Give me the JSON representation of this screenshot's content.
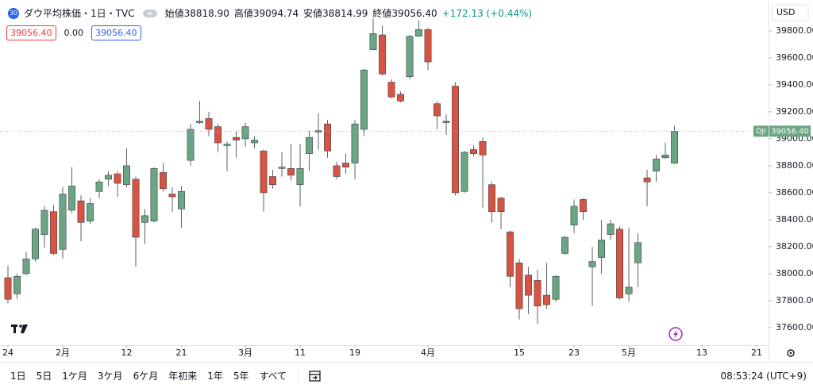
{
  "header": {
    "badge": "30",
    "title": "ダウ平均株価・1日・TVC",
    "ohlc": [
      {
        "label": "始値",
        "value": "38818.90"
      },
      {
        "label": "高値",
        "value": "39094.74"
      },
      {
        "label": "安値",
        "value": "38814.99"
      },
      {
        "label": "終値",
        "value": "39056.40"
      }
    ],
    "change": "+172.13 (+0.44%)",
    "sell": "39056.40",
    "spread": "0.00",
    "buy": "39056.40"
  },
  "chart_data": {
    "type": "candlestick",
    "symbol": "DJI",
    "last_price_label": "39056.40",
    "currency": "USD",
    "up_color": "#6ba583",
    "down_color": "#d75442",
    "grid": false,
    "open": [
      37970,
      37850,
      38000,
      38110,
      38290,
      38460,
      38180,
      38470,
      38540,
      38390,
      38610,
      38700,
      38740,
      38660,
      38700,
      38380,
      38390,
      38750,
      38590,
      38480,
      38840,
      39120,
      39150,
      39090,
      38950,
      39010,
      39000,
      38970,
      38910,
      38720,
      38780,
      38780,
      38660,
      38890,
      39060,
      39110,
      38800,
      38820,
      38820,
      39070,
      39660,
      39770,
      39420,
      39330,
      39460,
      39760,
      39810,
      39260,
      39130,
      39390,
      38610,
      38920,
      38980,
      38660,
      38560,
      38310,
      38080,
      37990,
      37950,
      37840,
      37810,
      38150,
      38360,
      38550,
      38050,
      38120,
      38290,
      38330,
      37850,
      38080,
      38710,
      38760,
      38860,
      38818.9
    ],
    "high": [
      38060,
      38000,
      38160,
      38340,
      38500,
      38510,
      38640,
      38790,
      38580,
      38560,
      38700,
      38760,
      38760,
      38930,
      38720,
      38480,
      38790,
      38820,
      38640,
      38650,
      39110,
      39280,
      39200,
      39110,
      38980,
      39060,
      39120,
      39020,
      38920,
      38770,
      38900,
      38960,
      38960,
      39060,
      39190,
      39140,
      38830,
      38890,
      39140,
      39520,
      39890,
      39840,
      39440,
      39350,
      39770,
      39880,
      39820,
      39280,
      39180,
      39420,
      38910,
      38950,
      39010,
      38680,
      38570,
      38320,
      38110,
      38050,
      38030,
      38080,
      37990,
      38280,
      38550,
      38560,
      38200,
      38400,
      38400,
      38350,
      38340,
      38300,
      38770,
      38880,
      38970,
      39094.74
    ],
    "low": [
      37780,
      37810,
      37990,
      38090,
      38190,
      38140,
      38110,
      38450,
      38240,
      38370,
      38560,
      38650,
      38570,
      38640,
      38050,
      38220,
      38380,
      38610,
      38460,
      38340,
      38800,
      39110,
      39020,
      38900,
      38760,
      38860,
      38940,
      38930,
      38460,
      38630,
      38720,
      38690,
      38500,
      38760,
      38920,
      38860,
      38700,
      38740,
      38700,
      39020,
      39660,
      39470,
      39300,
      39270,
      39440,
      39760,
      39510,
      39070,
      39030,
      38580,
      38600,
      38870,
      38490,
      38380,
      38330,
      37900,
      37660,
      37700,
      37630,
      37740,
      37790,
      38140,
      38300,
      38400,
      37760,
      38000,
      38250,
      37810,
      37790,
      37900,
      38500,
      38680,
      38850,
      38814.99
    ],
    "close": [
      37810,
      37980,
      38110,
      38330,
      38470,
      38150,
      38590,
      38650,
      38380,
      38520,
      38680,
      38730,
      38670,
      38800,
      38270,
      38430,
      38780,
      38630,
      38570,
      38610,
      39070,
      39130,
      39070,
      38970,
      38960,
      38990,
      39090,
      38990,
      38600,
      38660,
      38790,
      38730,
      38780,
      39010,
      39050,
      38910,
      38720,
      38790,
      39110,
      39510,
      39780,
      39480,
      39310,
      39280,
      39760,
      39810,
      39570,
      39170,
      39120,
      38600,
      38900,
      38890,
      38880,
      38460,
      38460,
      37980,
      37740,
      37840,
      37760,
      37770,
      37980,
      38270,
      38500,
      38460,
      38090,
      38250,
      38370,
      37820,
      37900,
      38230,
      38680,
      38850,
      38880,
      39056.4
    ],
    "xlim": [
      -0.87,
      83.3
    ],
    "xticks": [
      {
        "value": 0,
        "label": "24"
      },
      {
        "value": 6,
        "label": "2月"
      },
      {
        "value": 13,
        "label": "12"
      },
      {
        "value": 19,
        "label": "21"
      },
      {
        "value": 26,
        "label": "3月"
      },
      {
        "value": 32,
        "label": "11"
      },
      {
        "value": 38,
        "label": "19"
      },
      {
        "value": 46,
        "label": "4月"
      },
      {
        "value": 56,
        "label": "15"
      },
      {
        "value": 62,
        "label": "23"
      },
      {
        "value": 68,
        "label": "5月"
      },
      {
        "value": 76,
        "label": "13"
      },
      {
        "value": 82,
        "label": "21"
      }
    ],
    "ylim": [
      37470,
      40029
    ],
    "yticks": [
      {
        "value": 37600,
        "label": "37600.00"
      },
      {
        "value": 37800,
        "label": "37800.00"
      },
      {
        "value": 38000,
        "label": "38000.00"
      },
      {
        "value": 38200,
        "label": "38200.00"
      },
      {
        "value": 38400,
        "label": "38400.00"
      },
      {
        "value": 38600,
        "label": "38600.00"
      },
      {
        "value": 38800,
        "label": "38800.00"
      },
      {
        "value": 39000,
        "label": "39000.00"
      },
      {
        "value": 39200,
        "label": "39200.00"
      },
      {
        "value": 39400,
        "label": "39400.00"
      },
      {
        "value": 39600,
        "label": "39600.00"
      },
      {
        "value": 39800,
        "label": "39800.00"
      }
    ]
  },
  "toolbar": {
    "ranges": [
      "1日",
      "5日",
      "1ケ月",
      "3ケ月",
      "6ケ月",
      "年初来",
      "1年",
      "5年",
      "すべて"
    ],
    "clock": "08:53:24 (UTC+9)"
  }
}
